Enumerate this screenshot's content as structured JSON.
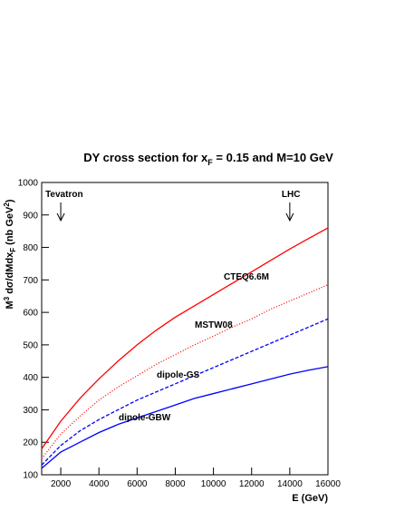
{
  "chart_data": {
    "type": "line",
    "title": [
      "DY cross section for x",
      "F",
      " = 0.15 and M=10 GeV"
    ],
    "y_label": [
      "M",
      "3",
      " dσ/dMdx",
      "F",
      " (nb GeV",
      "2",
      ")"
    ],
    "x_label": "E (GeV)",
    "x": [
      1000,
      2000,
      3000,
      4000,
      5000,
      6000,
      7000,
      8000,
      9000,
      10000,
      11000,
      12000,
      13000,
      14000,
      15000,
      16000
    ],
    "series": [
      {
        "name": "CTEQ6.6M",
        "color": "#ff0000",
        "linestyle": "solid",
        "values": [
          180,
          265,
          335,
          395,
          450,
          500,
          545,
          585,
          620,
          655,
          690,
          725,
          760,
          795,
          828,
          860
        ]
      },
      {
        "name": "MSTW08",
        "color": "#ff0000",
        "linestyle": "dotted",
        "values": [
          150,
          225,
          280,
          330,
          370,
          405,
          440,
          470,
          500,
          527,
          555,
          580,
          610,
          635,
          660,
          685
        ]
      },
      {
        "name": "dipole-GS",
        "color": "#0000ff",
        "linestyle": "dashed",
        "values": [
          130,
          190,
          235,
          270,
          300,
          330,
          355,
          380,
          405,
          430,
          455,
          480,
          505,
          530,
          555,
          580
        ]
      },
      {
        "name": "dipole-GBW",
        "color": "#0000ff",
        "linestyle": "solid",
        "values": [
          120,
          170,
          200,
          230,
          255,
          275,
          295,
          315,
          335,
          350,
          365,
          380,
          395,
          410,
          422,
          433
        ]
      }
    ],
    "annotations": [
      "Tevatron",
      "LHC"
    ],
    "xlim": [
      1000,
      16000
    ],
    "xticks": [
      2000,
      4000,
      6000,
      8000,
      10000,
      12000,
      14000,
      16000
    ],
    "ylim": [
      100,
      1000
    ],
    "yticks": [
      100,
      200,
      300,
      400,
      500,
      600,
      700,
      800,
      900,
      1000
    ]
  }
}
